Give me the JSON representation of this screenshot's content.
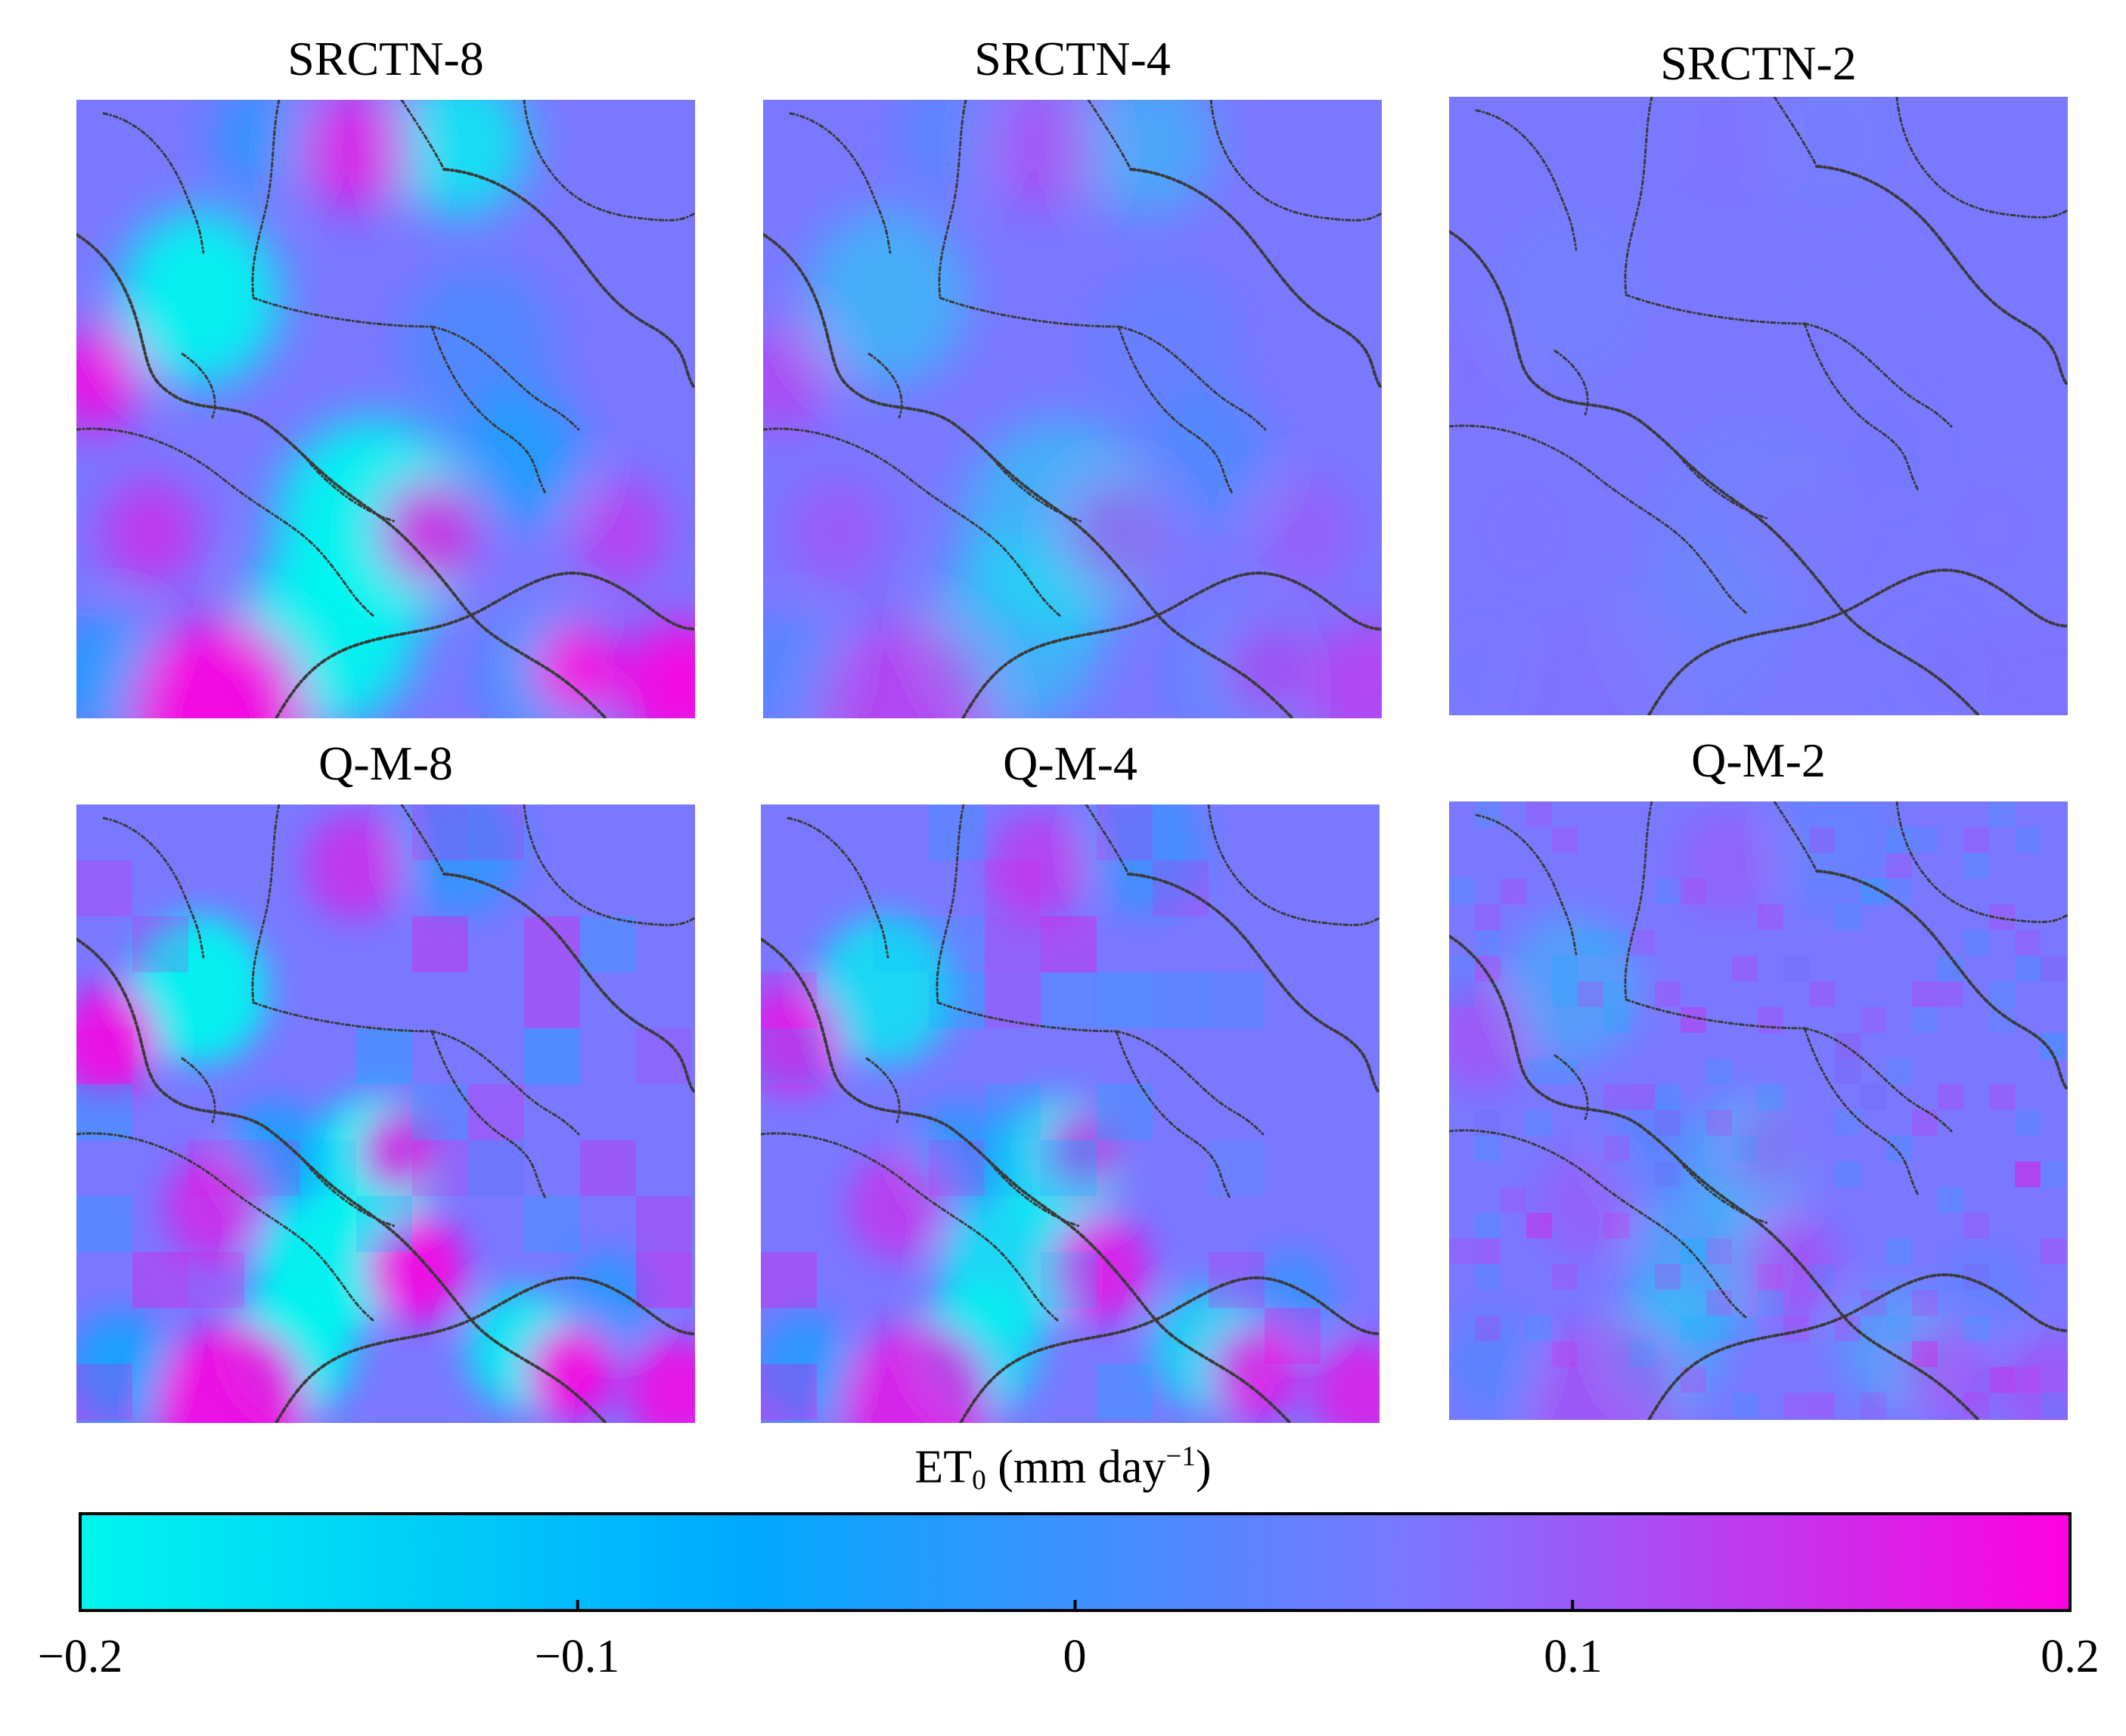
{
  "chart_data": {
    "type": "heatmap",
    "panels": [
      {
        "title": "SRCTN-8",
        "pattern": "srctn",
        "amplitude": 1.0
      },
      {
        "title": "SRCTN-4",
        "pattern": "srctn",
        "amplitude": 0.45
      },
      {
        "title": "SRCTN-2",
        "pattern": "srctn",
        "amplitude": 0.05
      },
      {
        "title": "Q-M-8",
        "pattern": "qm",
        "amplitude": 1.0
      },
      {
        "title": "Q-M-4",
        "pattern": "qm",
        "amplitude": 0.8
      },
      {
        "title": "Q-M-2",
        "pattern": "qm",
        "amplitude": 0.3
      }
    ],
    "colorbar": {
      "label_main": "ET",
      "label_sub": "0",
      "label_unit_open": " (mm day",
      "label_sup": "−1",
      "label_close": ")",
      "min": -0.2,
      "max": 0.2,
      "ticks": [
        "−0.2",
        "−0.1",
        "0",
        "0.1",
        "0.2"
      ],
      "tick_values": [
        -0.2,
        -0.1,
        0,
        0.1,
        0.2
      ],
      "colors": [
        "#00f5f0",
        "#00a9ff",
        "#7a78ff",
        "#ff00e0"
      ]
    },
    "boundary_color": "#3a3a3a"
  }
}
